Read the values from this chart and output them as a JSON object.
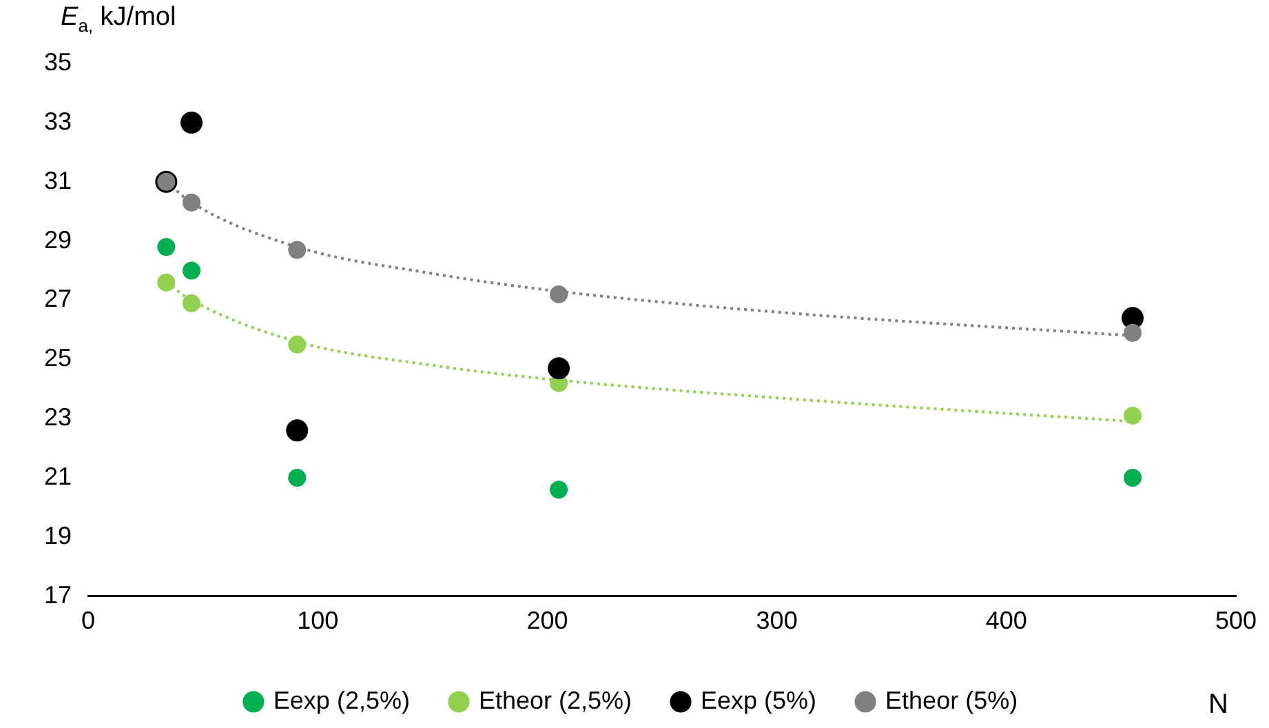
{
  "chart_data": {
    "type": "scatter",
    "xlabel": "N",
    "ylabel": "E$_{a,}$ kJ/mol",
    "xlim": [
      0,
      500
    ],
    "xticks": [
      0,
      100,
      200,
      300,
      400,
      500
    ],
    "ylim": [
      17,
      35
    ],
    "yticks": [
      17,
      19,
      21,
      23,
      25,
      27,
      29,
      31,
      33,
      35
    ],
    "grid": false,
    "legend": "bottom",
    "marker": "circle",
    "series": [
      {
        "name": "Eexp (2,5%)",
        "color": "#00b050",
        "x": [
          34,
          45,
          91,
          205,
          455
        ],
        "values": [
          28.8,
          28.0,
          21.0,
          20.6,
          21.0
        ]
      },
      {
        "name": "Etheor (2,5%)",
        "color": "#92d050",
        "x": [
          34,
          45,
          91,
          205,
          455
        ],
        "values": [
          27.6,
          26.9,
          25.5,
          24.2,
          23.1
        ]
      },
      {
        "name": "Eexp (5%)",
        "color": "#000000",
        "x": [
          34,
          45,
          91,
          205,
          455
        ],
        "values": [
          31.0,
          33.0,
          22.6,
          24.7,
          26.4
        ]
      },
      {
        "name": "Etheor (5%)",
        "color": "#808080",
        "x": [
          34,
          45,
          91,
          205,
          455
        ],
        "values": [
          31.0,
          30.3,
          28.7,
          27.2,
          25.9
        ]
      },
      {
        "type": "line",
        "marker": "none",
        "line_style": "dotted",
        "color": "#92d050",
        "x": [
          34,
          45,
          91,
          150,
          205,
          300,
          455
        ],
        "values": [
          27.6,
          27.0,
          25.6,
          24.8,
          24.3,
          23.7,
          22.9
        ]
      },
      {
        "type": "line",
        "marker": "none",
        "line_style": "dotted",
        "color": "#808080",
        "x": [
          34,
          45,
          91,
          150,
          205,
          300,
          455
        ],
        "values": [
          31.0,
          30.3,
          28.8,
          27.9,
          27.3,
          26.6,
          25.8
        ]
      }
    ]
  }
}
